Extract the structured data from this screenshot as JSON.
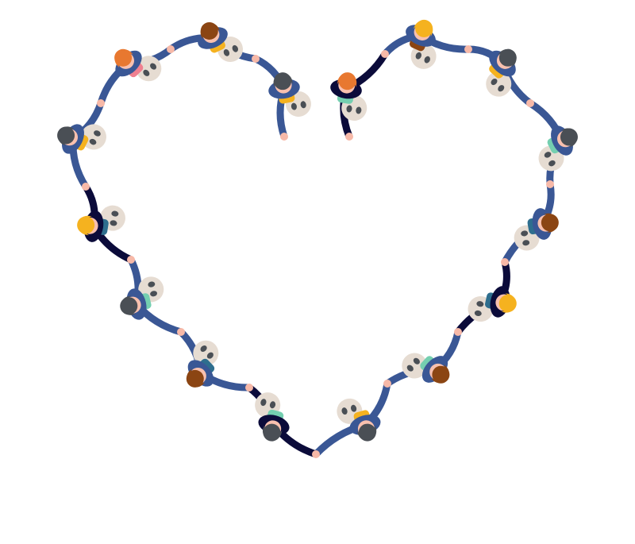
{
  "illustration": {
    "people": [
      {
        "hair": "#8B4513",
        "shirt": "#3A5795",
        "pants": "#F5B21F"
      },
      {
        "hair": "#4A4F55",
        "shirt": "#3A5795",
        "pants": "#F5B21F"
      },
      {
        "hair": "#E87830",
        "shirt": "#0B0B3A",
        "pants": "#74CFB0"
      },
      {
        "hair": "#F5B21F",
        "shirt": "#3A5795",
        "pants": "#8B4513"
      },
      {
        "hair": "#4A4F55",
        "shirt": "#3A5795",
        "pants": "#F5B21F"
      },
      {
        "hair": "#4A4F55",
        "shirt": "#3A5795",
        "pants": "#74CFB0"
      },
      {
        "hair": "#8B4513",
        "shirt": "#3A5795",
        "pants": "#2E6E8E"
      },
      {
        "hair": "#F5B21F",
        "shirt": "#0B0B3A",
        "pants": "#2E6E8E"
      },
      {
        "hair": "#8B4513",
        "shirt": "#3A5795",
        "pants": "#74CFB0"
      },
      {
        "hair": "#4A4F55",
        "shirt": "#3A5795",
        "pants": "#F5B21F"
      },
      {
        "hair": "#4A4F55",
        "shirt": "#0B0B3A",
        "pants": "#74CFB0"
      },
      {
        "hair": "#8B4513",
        "shirt": "#3A5795",
        "pants": "#2E6E8E"
      },
      {
        "hair": "#4A4F55",
        "shirt": "#3A5795",
        "pants": "#74CFB0"
      },
      {
        "hair": "#F5B21F",
        "shirt": "#0B0B3A",
        "pants": "#2E6E8E"
      },
      {
        "hair": "#4A4F55",
        "shirt": "#3A5795",
        "pants": "#F5B21F"
      },
      {
        "hair": "#E87830",
        "shirt": "#3A5795",
        "pants": "#F08090"
      }
    ],
    "colors": {
      "skin": "#F8C0AE",
      "hand": "#F7B9A8",
      "shadow": "#E6DCD2",
      "shoe": "#4A4F55",
      "background": "#FFFFFF"
    }
  }
}
